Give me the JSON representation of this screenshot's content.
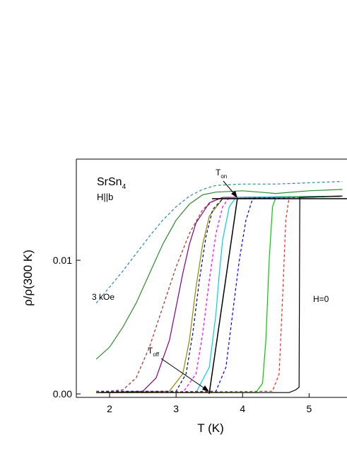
{
  "chart_data": {
    "type": "line",
    "x_label": "T (K)",
    "y_label": "ρ/ρ(300 K)",
    "sample": "SrSn",
    "sample_subscript": "4",
    "field_direction": "H||b",
    "label_high_field": "3 kOe",
    "label_zero_field": "H=0",
    "t_on": "T",
    "t_on_subscript": "on",
    "t_off": "T",
    "t_off_subscript": "off",
    "xlim": [
      1.5,
      5.57
    ],
    "ylim": [
      -0.00026,
      0.01757
    ],
    "xticks": [
      2,
      3,
      4,
      5
    ],
    "yticks": [
      {
        "value": 0,
        "label": "0.00"
      },
      {
        "value": 0.01,
        "label": "0.01"
      }
    ],
    "series": [
      {
        "color": "#2a8a9a",
        "dashed": true,
        "x": [
          1.8,
          2.0,
          2.2,
          2.4,
          2.6,
          2.8,
          3.0,
          3.2,
          3.4,
          3.6,
          4.0,
          4.5,
          5.0,
          5.5
        ],
        "values": [
          0.0068,
          0.008,
          0.0092,
          0.0105,
          0.0118,
          0.013,
          0.014,
          0.0148,
          0.0153,
          0.0156,
          0.0157,
          0.0157,
          0.0158,
          0.0159
        ]
      },
      {
        "color": "#2e8b2e",
        "dashed": false,
        "x": [
          1.8,
          2.0,
          2.2,
          2.4,
          2.6,
          2.8,
          3.0,
          3.2,
          3.4,
          3.6,
          4.0,
          4.5,
          5.0,
          5.5
        ],
        "values": [
          0.0026,
          0.0035,
          0.005,
          0.0068,
          0.009,
          0.0112,
          0.013,
          0.0142,
          0.0149,
          0.0151,
          0.0152,
          0.015,
          0.0152,
          0.0153
        ]
      },
      {
        "color": "#a0302a",
        "dashed": true,
        "x": [
          1.8,
          2.2,
          2.4,
          2.6,
          2.8,
          3.0,
          3.2,
          3.4,
          3.6,
          5.5
        ],
        "values": [
          0.0001,
          0.0003,
          0.0012,
          0.0035,
          0.0065,
          0.0095,
          0.012,
          0.0138,
          0.0146,
          0.0148
        ]
      },
      {
        "color": "#800080",
        "dashed": false,
        "x": [
          1.8,
          2.5,
          2.7,
          2.9,
          3.0,
          3.1,
          3.2,
          3.3,
          3.5,
          3.7,
          5.5
        ],
        "values": [
          0.0001,
          0.0002,
          0.0012,
          0.004,
          0.0065,
          0.009,
          0.0112,
          0.0128,
          0.0143,
          0.0147,
          0.0148
        ]
      },
      {
        "color": "#8b8b00",
        "dashed": false,
        "x": [
          1.8,
          2.9,
          3.1,
          3.2,
          3.3,
          3.4,
          3.5,
          3.7,
          5.5
        ],
        "values": [
          0.0001,
          0.0002,
          0.0015,
          0.004,
          0.008,
          0.0112,
          0.0133,
          0.0146,
          0.0148
        ]
      },
      {
        "color": "#000080",
        "dashed": true,
        "x": [
          1.8,
          3.0,
          3.15,
          3.25,
          3.35,
          3.45,
          3.55,
          3.7,
          5.5
        ],
        "values": [
          0.0002,
          0.0002,
          0.0015,
          0.0045,
          0.0085,
          0.0118,
          0.0138,
          0.0146,
          0.0148
        ]
      },
      {
        "color": "#ff00ff",
        "dashed": true,
        "x": [
          1.8,
          3.1,
          3.3,
          3.4,
          3.5,
          3.6,
          3.7,
          3.8,
          5.5
        ],
        "values": [
          0.0001,
          0.0001,
          0.0015,
          0.0045,
          0.0085,
          0.012,
          0.014,
          0.0147,
          0.0148
        ]
      },
      {
        "color": "#00d0e0",
        "dashed": false,
        "x": [
          1.8,
          3.3,
          3.5,
          3.6,
          3.65,
          3.7,
          3.8,
          3.9,
          5.5
        ],
        "values": [
          0.0001,
          0.0001,
          0.002,
          0.006,
          0.009,
          0.0115,
          0.014,
          0.0147,
          0.0148
        ]
      },
      {
        "color": "#0000ff",
        "dashed": true,
        "x": [
          1.8,
          3.6,
          3.75,
          3.85,
          3.95,
          4.05,
          4.15,
          5.5
        ],
        "values": [
          0.0001,
          0.0002,
          0.002,
          0.006,
          0.01,
          0.013,
          0.0146,
          0.0148
        ]
      },
      {
        "color": "#00cc00",
        "dashed": false,
        "x": [
          1.8,
          4.2,
          4.3,
          4.35,
          4.4,
          4.45,
          4.5,
          5.5
        ],
        "values": [
          0.0001,
          0.0001,
          0.0008,
          0.004,
          0.01,
          0.014,
          0.0147,
          0.0148
        ]
      },
      {
        "color": "#ff2020",
        "dashed": true,
        "x": [
          1.8,
          4.45,
          4.55,
          4.6,
          4.65,
          4.7,
          5.5
        ],
        "values": [
          0.0001,
          0.0002,
          0.0015,
          0.007,
          0.013,
          0.0147,
          0.0148
        ]
      },
      {
        "color": "#000000",
        "dashed": false,
        "x": [
          1.8,
          4.7,
          4.8,
          4.85,
          4.86,
          4.9,
          5.5
        ],
        "values": [
          0.0001,
          0.0001,
          0.0003,
          0.0005,
          0.0147,
          0.0147,
          0.0148
        ]
      }
    ]
  }
}
